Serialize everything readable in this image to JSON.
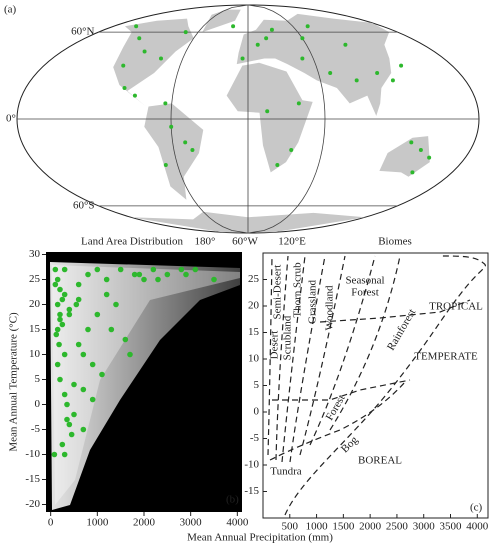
{
  "chart_data": [
    {
      "type": "map",
      "panel_label": "(a)",
      "color": "#2db82d",
      "lat_labels": [
        {
          "value": 60,
          "label": "60°N"
        },
        {
          "value": 0,
          "label": "0°"
        },
        {
          "value": -60,
          "label": "60°S"
        }
      ],
      "captions": [
        "Land Area Distribution",
        "Biomes"
      ],
      "meridian_labels": [
        "180°",
        "60°W",
        "120°E"
      ],
      "lon": [
        -150,
        -120,
        -100,
        -80,
        -75,
        -110,
        -90,
        -60,
        -50,
        -45,
        -70,
        -65,
        -100,
        10,
        20,
        30,
        -5,
        15,
        35,
        25,
        40,
        50,
        60,
        80,
        100,
        110,
        120,
        135,
        140,
        145,
        130,
        150,
        -20,
        70,
        90
      ],
      "lat": [
        65,
        55,
        45,
        40,
        60,
        35,
        15,
        -5,
        -15,
        -20,
        -30,
        10,
        20,
        50,
        55,
        62,
        40,
        5,
        -20,
        -30,
        10,
        40,
        55,
        65,
        50,
        30,
        25,
        35,
        -20,
        -35,
        -15,
        -25,
        65,
        30,
        25
      ]
    },
    {
      "type": "scatter",
      "panel_label": "(b)",
      "color": "#2db82d",
      "x_label": "Mean Annual Precipitation (mm)",
      "y_label": "Mean Annual Temperature (°C)",
      "xlim": [
        -100,
        4100
      ],
      "ylim": [
        -21.5,
        30.5
      ],
      "xticks": [
        0,
        1000,
        2000,
        3000,
        4000
      ],
      "yticks": [
        -20,
        -15,
        -10,
        -5,
        0,
        5,
        10,
        15,
        20,
        25,
        30
      ],
      "x": [
        100,
        150,
        200,
        250,
        300,
        120,
        180,
        400,
        600,
        800,
        1000,
        1200,
        1500,
        1800,
        2000,
        2200,
        2500,
        2800,
        3500,
        150,
        200,
        300,
        350,
        500,
        700,
        900,
        1100,
        1300,
        1600,
        400,
        450,
        250,
        300,
        600,
        800,
        1000,
        1400,
        1700,
        150,
        200,
        250,
        300,
        100,
        80,
        350,
        500,
        700,
        550,
        1200,
        1900,
        2300,
        2900,
        3100,
        700,
        900,
        300,
        150,
        200,
        400,
        600
      ],
      "y": [
        27,
        25,
        23,
        21,
        27,
        14,
        12,
        18,
        24,
        26,
        27,
        25,
        27,
        26,
        25,
        27,
        26,
        27,
        25,
        8,
        5,
        2,
        0,
        -2,
        10,
        8,
        6,
        15,
        13,
        -4,
        -6,
        -8,
        -10,
        12,
        15,
        18,
        20,
        10,
        20,
        18,
        16,
        22,
        24,
        -10,
        -3,
        4,
        -5,
        20,
        22,
        26,
        25,
        26,
        27,
        3,
        1,
        10,
        15,
        17,
        19,
        21
      ]
    },
    {
      "type": "diagram",
      "panel_label": "(c)",
      "xlim": [
        0,
        4200
      ],
      "ylim": [
        -20,
        30
      ],
      "xticks": [
        500,
        1000,
        1500,
        2000,
        2500,
        3000,
        3500,
        4000
      ],
      "yticks": [
        -15,
        -10,
        -5,
        0,
        5,
        10,
        15,
        20,
        25
      ],
      "labels": [
        "Desert",
        "Semi-Desert",
        "Scrubland",
        "Thorn Scrub",
        "Grassland",
        "Woodland",
        "Seasonal",
        "Forest",
        "Rainforest",
        "TROPICAL",
        "TEMPERATE",
        "Forest",
        "Bog",
        "BOREAL",
        "Tundra"
      ]
    }
  ]
}
